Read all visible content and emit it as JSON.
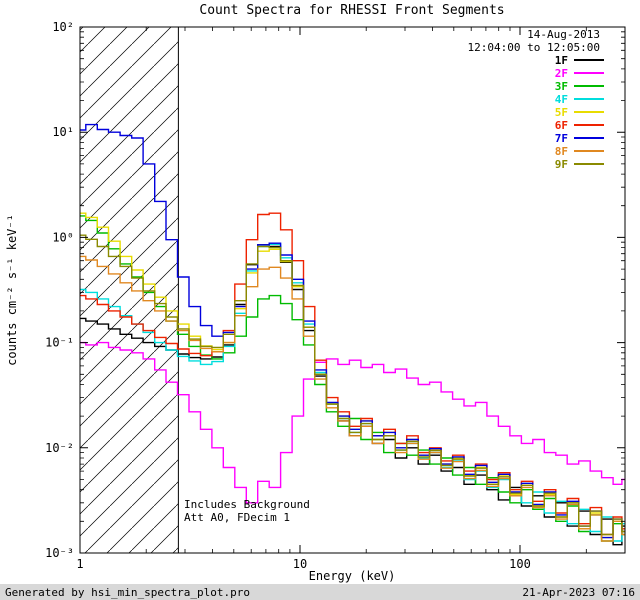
{
  "footer": {
    "left": "Generated by hsi_min_spectra_plot.pro",
    "right": "21-Apr-2023 07:16"
  },
  "chart_data": {
    "type": "line",
    "title": "Count Spectra for RHESSI Front Segments",
    "xlabel": "Energy (keV)",
    "ylabel": "counts cm⁻² s⁻¹ keV⁻¹",
    "xscale": "log",
    "yscale": "log",
    "xlim": [
      1,
      300
    ],
    "ylim": [
      0.001,
      100
    ],
    "grid": false,
    "legend_position": "top-right-inside",
    "x_ticks": [
      {
        "value": 1,
        "label": "1"
      },
      {
        "value": 10,
        "label": "10"
      },
      {
        "value": 100,
        "label": "100"
      }
    ],
    "y_ticks": [
      {
        "value": 100,
        "label": "10²"
      },
      {
        "value": 10,
        "label": "10¹"
      },
      {
        "value": 1,
        "label": "10⁰"
      },
      {
        "value": 0.1,
        "label": "10⁻¹"
      },
      {
        "value": 0.01,
        "label": "10⁻²"
      },
      {
        "value": 0.001,
        "label": "10⁻³"
      }
    ],
    "annotations": {
      "date": "14-Aug-2013",
      "time_range": "12:04:00 to 12:05:00",
      "background_note": "Includes Background",
      "state_note": "Att A0, FDecim 1"
    },
    "hatch_region": {
      "x_min": 1,
      "x_max": 2.8
    },
    "energies": [
      1.0,
      1.13,
      1.27,
      1.43,
      1.62,
      1.82,
      2.06,
      2.32,
      2.61,
      2.95,
      3.32,
      3.75,
      4.22,
      4.76,
      5.37,
      6.05,
      6.82,
      7.69,
      8.67,
      9.77,
      11.0,
      12.4,
      14.0,
      15.8,
      17.8,
      20.1,
      22.6,
      25.5,
      28.8,
      32.4,
      36.6,
      41.2,
      46.5,
      52.4,
      59.1,
      66.6,
      75.1,
      84.7,
      95.5,
      107.7,
      121.4,
      136.9,
      154.3,
      174.0,
      196.2,
      221.2,
      249.4,
      281.2,
      300.0
    ],
    "series": [
      {
        "name": "1F",
        "color": "#000000",
        "values": [
          0.17,
          0.16,
          0.15,
          0.135,
          0.12,
          0.11,
          0.1,
          0.092,
          0.085,
          0.078,
          0.072,
          0.07,
          0.073,
          0.095,
          0.23,
          0.55,
          0.85,
          0.82,
          0.58,
          0.32,
          0.13,
          0.048,
          0.026,
          0.018,
          0.013,
          0.016,
          0.011,
          0.012,
          0.008,
          0.01,
          0.007,
          0.0085,
          0.006,
          0.0065,
          0.0045,
          0.0055,
          0.004,
          0.0032,
          0.0042,
          0.0028,
          0.0035,
          0.0022,
          0.003,
          0.0018,
          0.0025,
          0.0015,
          0.0021,
          0.0012,
          0.0018
        ]
      },
      {
        "name": "2F",
        "color": "#ff00ff",
        "values": [
          0.1,
          0.095,
          0.1,
          0.09,
          0.085,
          0.08,
          0.07,
          0.055,
          0.042,
          0.032,
          0.022,
          0.015,
          0.01,
          0.0065,
          0.0042,
          0.003,
          0.0048,
          0.0042,
          0.009,
          0.02,
          0.045,
          0.065,
          0.07,
          0.062,
          0.068,
          0.058,
          0.062,
          0.052,
          0.056,
          0.046,
          0.04,
          0.042,
          0.034,
          0.029,
          0.025,
          0.027,
          0.02,
          0.016,
          0.013,
          0.011,
          0.012,
          0.009,
          0.0085,
          0.007,
          0.0075,
          0.006,
          0.0052,
          0.0045,
          0.005
        ]
      },
      {
        "name": "3F",
        "color": "#00bb00",
        "values": [
          1.6,
          1.45,
          1.1,
          0.78,
          0.56,
          0.42,
          0.3,
          0.22,
          0.16,
          0.12,
          0.092,
          0.076,
          0.07,
          0.08,
          0.115,
          0.175,
          0.26,
          0.28,
          0.235,
          0.165,
          0.095,
          0.04,
          0.022,
          0.016,
          0.019,
          0.012,
          0.014,
          0.009,
          0.011,
          0.0085,
          0.0095,
          0.007,
          0.008,
          0.0055,
          0.0065,
          0.0045,
          0.0052,
          0.0038,
          0.003,
          0.004,
          0.0026,
          0.0033,
          0.002,
          0.0028,
          0.0016,
          0.0023,
          0.0013,
          0.0019,
          0.0015
        ]
      },
      {
        "name": "4F",
        "color": "#00dddd",
        "values": [
          0.32,
          0.3,
          0.26,
          0.22,
          0.18,
          0.15,
          0.125,
          0.1,
          0.085,
          0.074,
          0.067,
          0.062,
          0.066,
          0.092,
          0.19,
          0.48,
          0.82,
          0.86,
          0.64,
          0.37,
          0.15,
          0.052,
          0.026,
          0.019,
          0.014,
          0.017,
          0.012,
          0.013,
          0.0095,
          0.011,
          0.008,
          0.009,
          0.0065,
          0.0075,
          0.005,
          0.006,
          0.0042,
          0.005,
          0.0035,
          0.003,
          0.0038,
          0.0024,
          0.0031,
          0.0019,
          0.0026,
          0.0016,
          0.0022,
          0.0013,
          0.0019
        ]
      },
      {
        "name": "5F",
        "color": "#e8dc00",
        "values": [
          1.7,
          1.55,
          1.25,
          0.92,
          0.66,
          0.49,
          0.36,
          0.27,
          0.2,
          0.15,
          0.115,
          0.093,
          0.086,
          0.1,
          0.21,
          0.46,
          0.74,
          0.77,
          0.59,
          0.34,
          0.14,
          0.05,
          0.026,
          0.02,
          0.015,
          0.018,
          0.012,
          0.014,
          0.01,
          0.012,
          0.0085,
          0.0095,
          0.007,
          0.008,
          0.0055,
          0.0065,
          0.0045,
          0.0055,
          0.0036,
          0.0044,
          0.0028,
          0.0036,
          0.0022,
          0.003,
          0.0017,
          0.0024,
          0.0014,
          0.002,
          0.0016
        ]
      },
      {
        "name": "6F",
        "color": "#ee2200",
        "values": [
          0.28,
          0.26,
          0.23,
          0.2,
          0.175,
          0.15,
          0.13,
          0.112,
          0.098,
          0.087,
          0.079,
          0.075,
          0.082,
          0.13,
          0.36,
          0.95,
          1.65,
          1.7,
          1.18,
          0.6,
          0.22,
          0.068,
          0.03,
          0.022,
          0.016,
          0.019,
          0.013,
          0.015,
          0.011,
          0.013,
          0.009,
          0.01,
          0.0075,
          0.0085,
          0.006,
          0.007,
          0.005,
          0.0058,
          0.004,
          0.0048,
          0.0031,
          0.004,
          0.0024,
          0.0033,
          0.0019,
          0.0027,
          0.0015,
          0.0022,
          0.0017
        ]
      },
      {
        "name": "7F",
        "color": "#0000dd",
        "values": [
          10.5,
          11.8,
          10.6,
          10.0,
          9.3,
          8.8,
          5.0,
          2.2,
          0.95,
          0.42,
          0.22,
          0.145,
          0.115,
          0.125,
          0.22,
          0.5,
          0.85,
          0.88,
          0.68,
          0.4,
          0.16,
          0.055,
          0.027,
          0.02,
          0.015,
          0.018,
          0.013,
          0.014,
          0.01,
          0.012,
          0.0085,
          0.0098,
          0.007,
          0.0082,
          0.0056,
          0.0068,
          0.0047,
          0.0056,
          0.0038,
          0.0046,
          0.0029,
          0.0038,
          0.0023,
          0.0031,
          0.0018,
          0.0025,
          0.0014,
          0.0021,
          0.0016
        ]
      },
      {
        "name": "8F",
        "color": "#e08820",
        "values": [
          0.66,
          0.61,
          0.53,
          0.45,
          0.37,
          0.31,
          0.25,
          0.2,
          0.16,
          0.13,
          0.105,
          0.088,
          0.082,
          0.1,
          0.18,
          0.34,
          0.5,
          0.52,
          0.41,
          0.26,
          0.115,
          0.045,
          0.024,
          0.018,
          0.013,
          0.016,
          0.011,
          0.013,
          0.009,
          0.011,
          0.0078,
          0.009,
          0.0064,
          0.0074,
          0.0051,
          0.0061,
          0.0043,
          0.0051,
          0.0035,
          0.0042,
          0.0027,
          0.0035,
          0.0021,
          0.0029,
          0.0017,
          0.0023,
          0.0013,
          0.002,
          0.0015
        ]
      },
      {
        "name": "9F",
        "color": "#8a8a00",
        "values": [
          1.05,
          0.96,
          0.82,
          0.66,
          0.53,
          0.41,
          0.31,
          0.235,
          0.175,
          0.135,
          0.108,
          0.092,
          0.09,
          0.12,
          0.25,
          0.56,
          0.82,
          0.8,
          0.6,
          0.35,
          0.14,
          0.05,
          0.026,
          0.019,
          0.014,
          0.017,
          0.012,
          0.013,
          0.0095,
          0.0115,
          0.0082,
          0.0094,
          0.0068,
          0.0078,
          0.0054,
          0.0064,
          0.0045,
          0.0053,
          0.0037,
          0.0044,
          0.0028,
          0.0037,
          0.0022,
          0.003,
          0.0018,
          0.0025,
          0.0015,
          0.0021,
          0.0016
        ]
      }
    ]
  }
}
